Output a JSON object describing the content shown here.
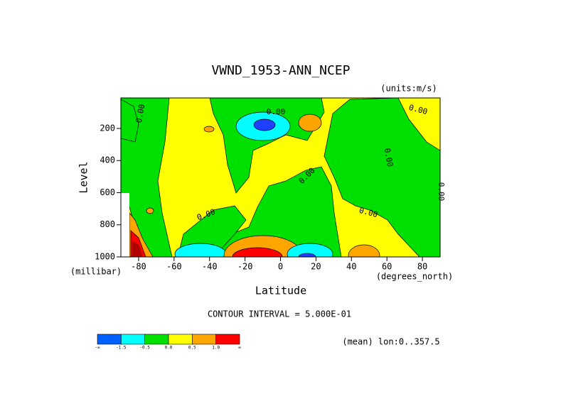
{
  "chart_data": {
    "type": "contour",
    "title": "VWND_1953-ANN_NCEP",
    "units_label": "(units:m/s)",
    "y_label": "Level",
    "y_units": "(millibar)",
    "x_label": "Latitude",
    "x_units": "(degrees_north)",
    "contour_interval_text": "CONTOUR INTERVAL = 5.000E-01",
    "footer_note": "(mean) lon:0..357.5",
    "contour_labels": [
      "0.00",
      "0.00",
      "0.00",
      "0.00",
      "0.00",
      "0.00",
      "0.00",
      "0.00"
    ],
    "xlim": [
      -90,
      90
    ],
    "xticks": [
      -80,
      -60,
      -40,
      -20,
      0,
      20,
      40,
      60,
      80
    ],
    "ylim": [
      1000,
      10
    ],
    "yticks": [
      200,
      400,
      600,
      800,
      1000
    ],
    "colorbar": {
      "labels": [
        "-∞",
        "-1.5",
        "-0.5",
        "0.0",
        "0.5",
        "1.0",
        "∞"
      ],
      "colors": [
        "#0060ff",
        "#00ffff",
        "#00e000",
        "#ffff00",
        "#ffa500",
        "#ff0000"
      ]
    },
    "dark_red": "#b00000",
    "blue": "#2040ff"
  }
}
